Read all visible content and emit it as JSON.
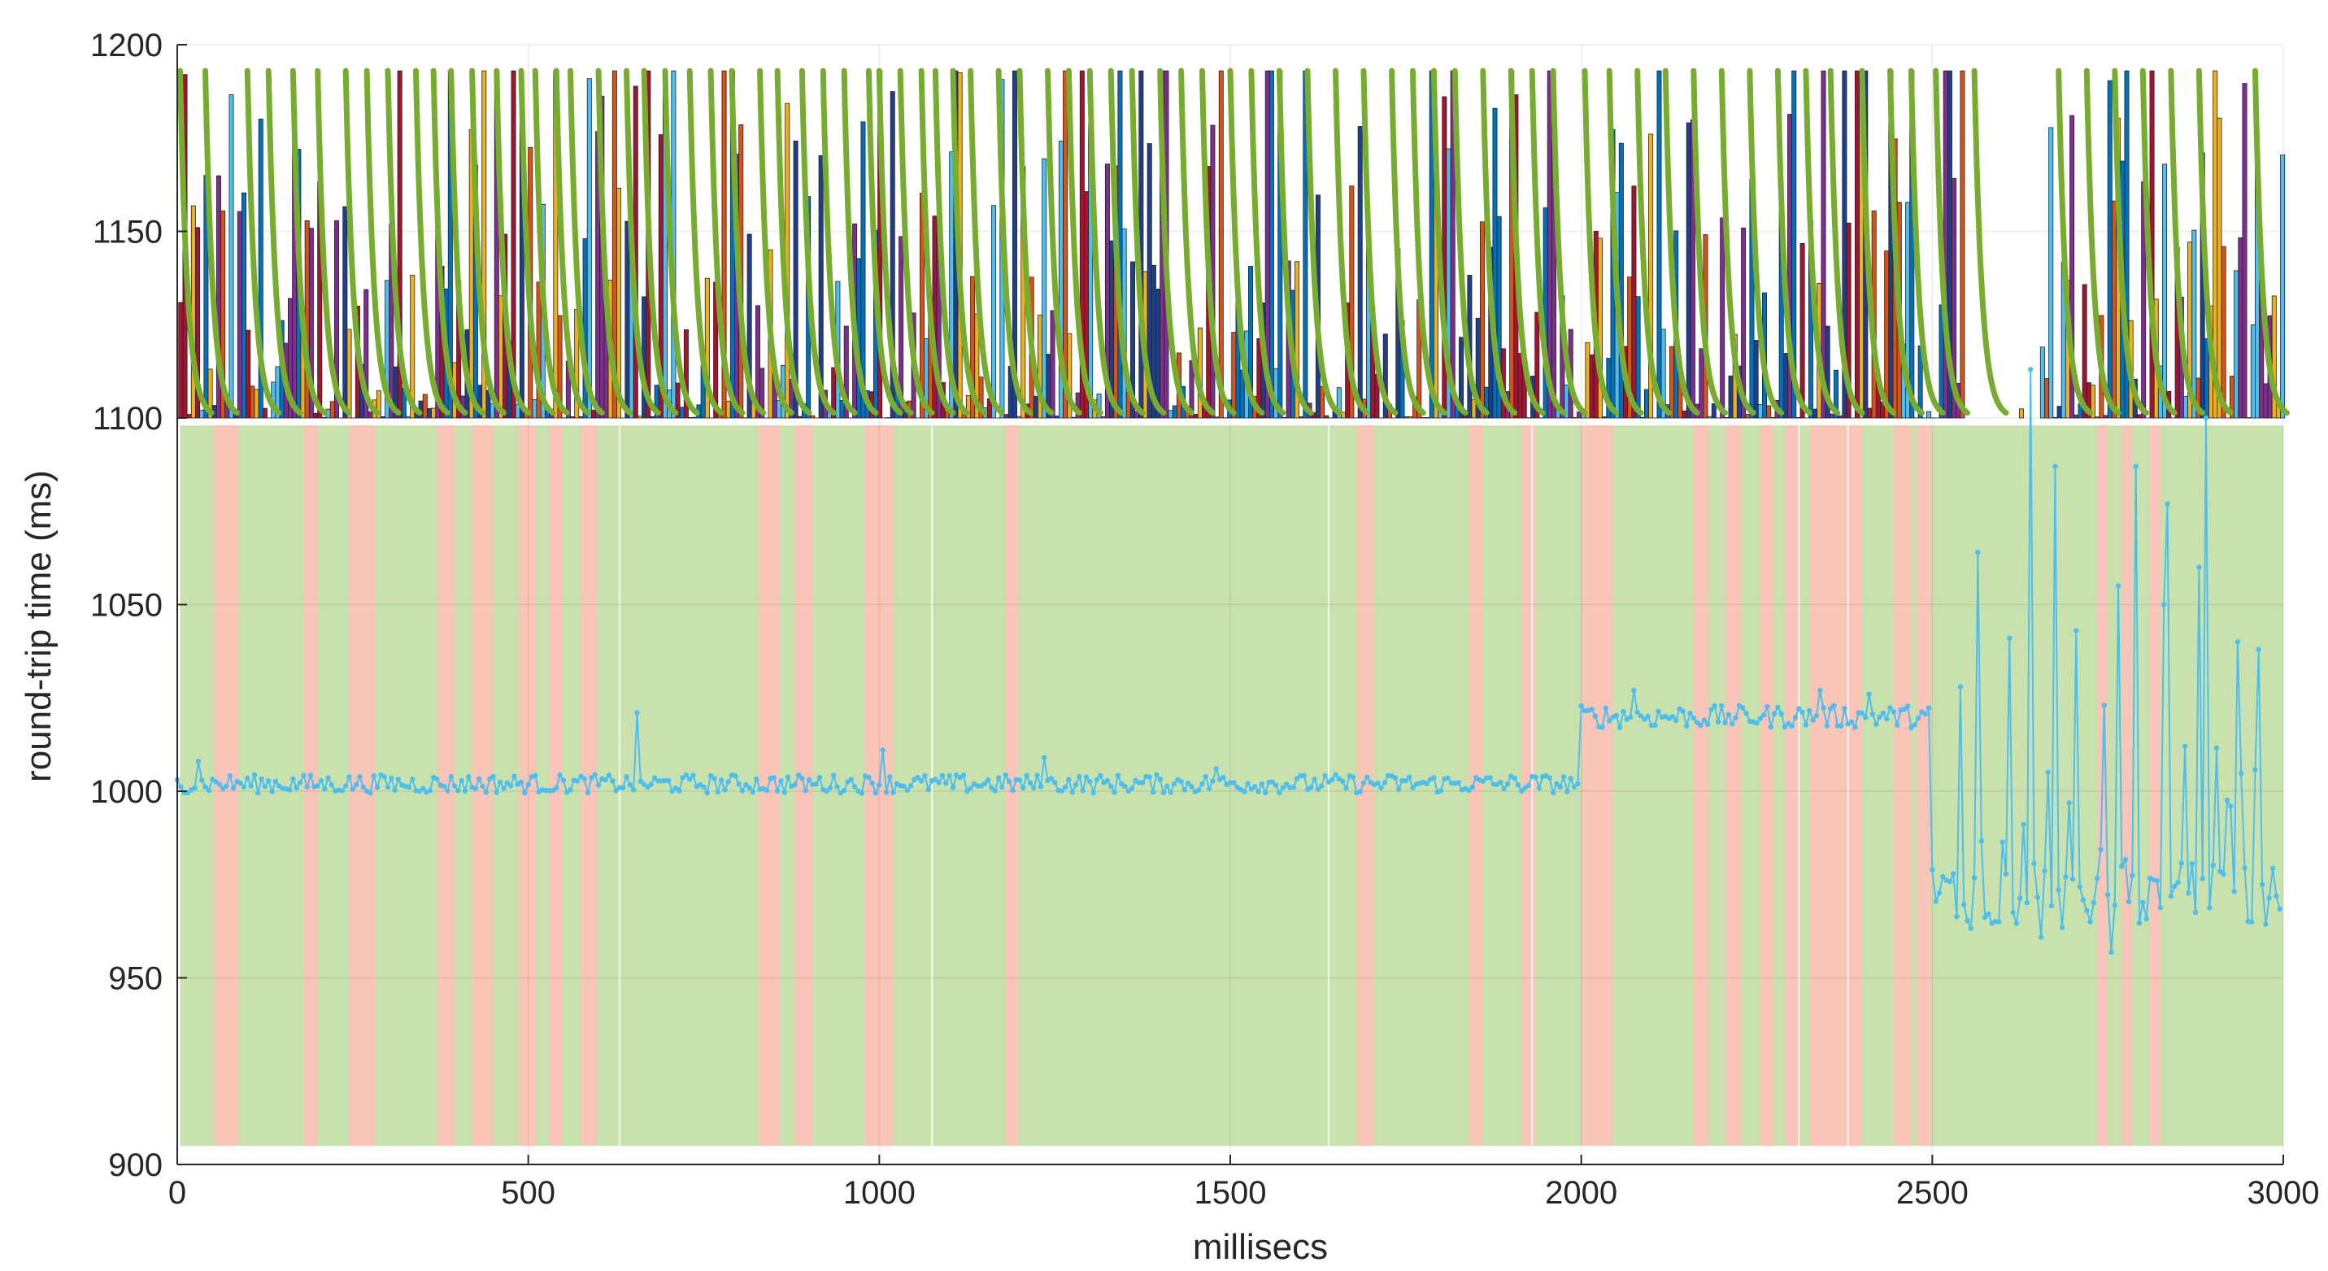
{
  "chart_data": {
    "type": "line",
    "title": "",
    "xlabel": "millisecs",
    "ylabel": "round-trip time (ms)",
    "xlim": [
      0,
      3000
    ],
    "ylim": [
      900,
      1200
    ],
    "x_ticks": [
      0,
      500,
      1000,
      1500,
      2000,
      2500,
      3000
    ],
    "y_ticks": [
      900,
      950,
      1000,
      1050,
      1100,
      1150,
      1200
    ],
    "grid": true,
    "legend": "none",
    "colors": {
      "rtt_line": "#4dbeee",
      "ok_band": "#c9e1ad",
      "bad_band": "#f8c5b8",
      "decay_curve": "#77ac30",
      "bar_palette": [
        "#0072bd",
        "#d95319",
        "#edb120",
        "#7e2f8e",
        "#a2142f",
        "#4dbeee",
        "#1f3f8a"
      ]
    },
    "state_bands": {
      "ok_color_name": "green",
      "bad_color_name": "red",
      "bad_intervals": [
        [
          52,
          88
        ],
        [
          180,
          200
        ],
        [
          245,
          282
        ],
        [
          370,
          395
        ],
        [
          420,
          450
        ],
        [
          487,
          512
        ],
        [
          530,
          548
        ],
        [
          575,
          598
        ],
        [
          828,
          858
        ],
        [
          880,
          905
        ],
        [
          980,
          1020
        ],
        [
          1180,
          1198
        ],
        [
          1680,
          1705
        ],
        [
          1840,
          1860
        ],
        [
          1915,
          1935
        ],
        [
          2000,
          2045
        ],
        [
          2160,
          2182
        ],
        [
          2205,
          2228
        ],
        [
          2255,
          2275
        ],
        [
          2290,
          2310
        ],
        [
          2325,
          2400
        ],
        [
          2445,
          2470
        ],
        [
          2478,
          2498
        ],
        [
          2735,
          2750
        ],
        [
          2770,
          2785
        ],
        [
          2810,
          2825
        ]
      ]
    },
    "series": [
      {
        "name": "",
        "segments": [
          {
            "x_start": 0,
            "x_end": 2000,
            "mean": 1002,
            "jitter": 2.5,
            "spikes": [
              [
                30,
                1008
              ],
              [
                655,
                1021
              ],
              [
                1005,
                1011
              ],
              [
                1235,
                1009
              ],
              [
                1480,
                1006
              ]
            ]
          },
          {
            "x_start": 2000,
            "x_end": 2500,
            "mean": 1020,
            "jitter": 3,
            "spikes": [
              [
                2075,
                1027
              ],
              [
                2340,
                1027
              ],
              [
                2410,
                1026
              ]
            ]
          },
          {
            "x_start": 2500,
            "x_end": 3000,
            "mean": 972,
            "jitter": 9,
            "spikes": [
              [
                2640,
                1113
              ],
              [
                2675,
                1087
              ],
              [
                2565,
                1064
              ],
              [
                2765,
                1055
              ],
              [
                2830,
                1050
              ],
              [
                2880,
                1060
              ],
              [
                2890,
                1100
              ],
              [
                2835,
                1077
              ],
              [
                2790,
                1087
              ],
              [
                2935,
                1040
              ],
              [
                2705,
                1043
              ],
              [
                2610,
                1041
              ],
              [
                2965,
                1038
              ],
              [
                2860,
                1012
              ],
              [
                2540,
                1028
              ],
              [
                2745,
                1023
              ]
            ]
          }
        ]
      }
    ],
    "upper_panel": {
      "y_range": [
        1100,
        1193
      ],
      "decay_curve_starts": [
        4,
        40,
        100,
        130,
        165,
        200,
        240,
        270,
        300,
        340,
        365,
        390,
        420,
        455,
        490,
        510,
        540,
        560,
        600,
        640,
        665,
        695,
        730,
        760,
        790,
        830,
        855,
        890,
        920,
        950,
        985,
        1000,
        1030,
        1060,
        1080,
        1105,
        1130,
        1170,
        1200,
        1240,
        1270,
        1300,
        1330,
        1360,
        1400,
        1430,
        1460,
        1500,
        1530,
        1570,
        1610,
        1650,
        1690,
        1730,
        1760,
        1790,
        1820,
        1860,
        1900,
        1930,
        1960,
        2005,
        2040,
        2080,
        2120,
        2160,
        2200,
        2240,
        2280,
        2320,
        2355,
        2400,
        2440,
        2470,
        2505,
        2560,
        2680,
        2720,
        2760,
        2800,
        2840,
        2880,
        2960
      ]
    }
  }
}
